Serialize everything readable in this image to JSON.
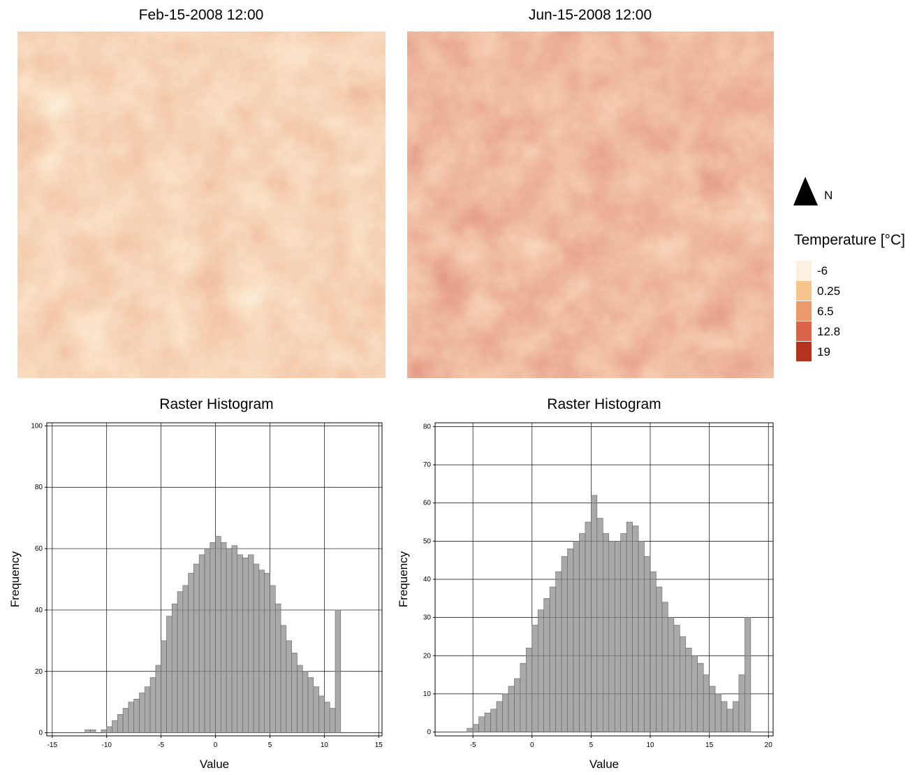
{
  "maps": [
    {
      "title": "Feb-15-2008 12:00"
    },
    {
      "title": "Jun-15-2008 12:00"
    }
  ],
  "north_label": "N",
  "legend": {
    "title": "Temperature [°C]",
    "entries": [
      {
        "value": -6,
        "color": "#fdf0e0"
      },
      {
        "value": 0.25,
        "color": "#f6c48c"
      },
      {
        "value": 6.5,
        "color": "#ec9a6c"
      },
      {
        "value": 12.8,
        "color": "#d9664a"
      },
      {
        "value": 19,
        "color": "#b5321f"
      }
    ]
  },
  "chart_data": [
    {
      "type": "histogram",
      "title": "Raster Histogram",
      "x_label": "Value",
      "y_label": "Frequency",
      "color": "#8c8c8c",
      "grid": true,
      "xlim": [
        -15.5,
        15.3
      ],
      "ylim": [
        -1,
        101
      ],
      "xticks": [
        -15,
        -10,
        -5,
        0,
        5,
        10,
        15
      ],
      "yticks": [
        0,
        20,
        40,
        60,
        80,
        100
      ],
      "bins": [
        -12.5,
        -12,
        -11.5,
        -11,
        -10.5,
        -10,
        -9.5,
        -9,
        -8.5,
        -8,
        -7.5,
        -7,
        -6.5,
        -6,
        -5.5,
        -5,
        -4.5,
        -4,
        -3.5,
        -3,
        -2.5,
        -2,
        -1.5,
        -1,
        -0.5,
        0,
        0.5,
        1,
        1.5,
        2,
        2.5,
        3,
        3.5,
        4,
        4.5,
        5,
        5.5,
        6,
        6.5,
        7,
        7.5,
        8,
        8.5,
        9,
        9.5,
        10,
        10.5,
        11,
        11.5
      ],
      "values": [
        0,
        1,
        1,
        0,
        1,
        2,
        4,
        6,
        8,
        10,
        11,
        13,
        15,
        18,
        22,
        30,
        38,
        42,
        46,
        48,
        52,
        55,
        58,
        60,
        62,
        64,
        62,
        60,
        61,
        58,
        57,
        58,
        55,
        53,
        52,
        48,
        42,
        35,
        30,
        26,
        22,
        20,
        18,
        15,
        12,
        10,
        8,
        40
      ]
    },
    {
      "type": "histogram",
      "title": "Raster Histogram",
      "x_label": "Value",
      "y_label": "Frequency",
      "color": "#8c8c8c",
      "grid": true,
      "xlim": [
        -8.2,
        20.4
      ],
      "ylim": [
        -1,
        81
      ],
      "xticks": [
        -5,
        0,
        5,
        10,
        15,
        20
      ],
      "yticks": [
        0,
        10,
        20,
        30,
        40,
        50,
        60,
        70,
        80
      ],
      "bins": [
        -5.5,
        -5,
        -4.5,
        -4,
        -3.5,
        -3,
        -2.5,
        -2,
        -1.5,
        -1,
        -0.5,
        0,
        0.5,
        1,
        1.5,
        2,
        2.5,
        3,
        3.5,
        4,
        4.5,
        5,
        5.5,
        6,
        6.5,
        7,
        7.5,
        8,
        8.5,
        9,
        9.5,
        10,
        10.5,
        11,
        11.5,
        12,
        12.5,
        13,
        13.5,
        14,
        14.5,
        15,
        15.5,
        16,
        16.5,
        17,
        17.5,
        18,
        18.5
      ],
      "values": [
        1,
        2,
        4,
        5,
        6,
        8,
        10,
        12,
        14,
        18,
        22,
        28,
        32,
        35,
        38,
        42,
        46,
        48,
        50,
        52,
        55,
        62,
        56,
        52,
        50,
        50,
        52,
        55,
        54,
        50,
        46,
        42,
        38,
        34,
        30,
        28,
        25,
        22,
        20,
        18,
        15,
        12,
        10,
        8,
        6,
        8,
        15,
        30
      ]
    }
  ]
}
